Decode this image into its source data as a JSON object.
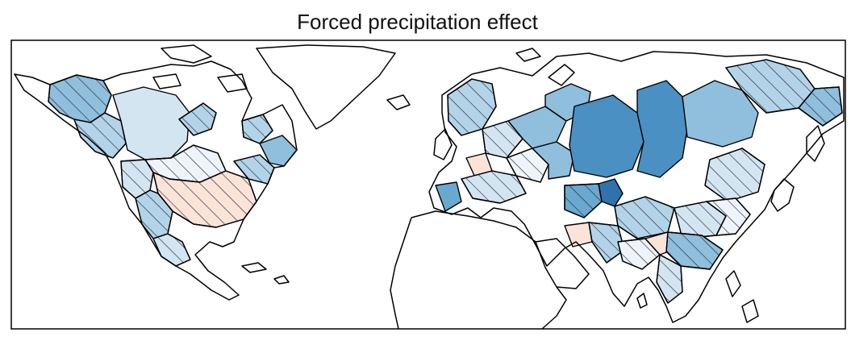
{
  "title": "Forced precipitation effect",
  "colors": {
    "frame": "#000000",
    "coast": "#000000",
    "ocean": "#ffffff",
    "scale": [
      "#fbe3d8",
      "#eef4fa",
      "#d4e5f2",
      "#b3d3e8",
      "#8fbfdc",
      "#6aa8d0",
      "#4a90c2",
      "#2f72ae",
      "#1b5a96"
    ],
    "hatch": "#1a1a2e"
  },
  "legend": "none",
  "map_region": "North America and Eurasia river basins"
}
